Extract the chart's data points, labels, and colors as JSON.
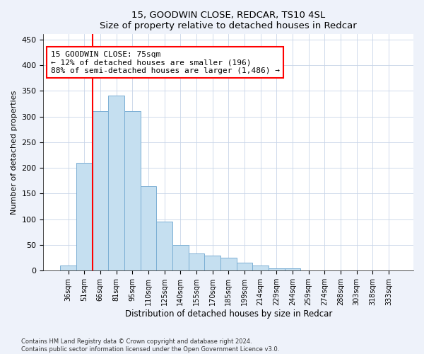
{
  "title1": "15, GOODWIN CLOSE, REDCAR, TS10 4SL",
  "title2": "Size of property relative to detached houses in Redcar",
  "xlabel": "Distribution of detached houses by size in Redcar",
  "ylabel": "Number of detached properties",
  "categories": [
    "36sqm",
    "51sqm",
    "66sqm",
    "81sqm",
    "95sqm",
    "110sqm",
    "125sqm",
    "140sqm",
    "155sqm",
    "170sqm",
    "185sqm",
    "199sqm",
    "214sqm",
    "229sqm",
    "244sqm",
    "259sqm",
    "274sqm",
    "288sqm",
    "303sqm",
    "318sqm",
    "333sqm"
  ],
  "values": [
    10,
    210,
    310,
    340,
    310,
    165,
    95,
    50,
    33,
    30,
    25,
    15,
    10,
    5,
    5,
    1,
    1,
    1,
    1,
    1,
    1
  ],
  "bar_color": "#c5dff0",
  "bar_edge_color": "#7bafd4",
  "vline_color": "red",
  "vline_pos": 1.5,
  "annotation_text": "15 GOODWIN CLOSE: 75sqm\n← 12% of detached houses are smaller (196)\n88% of semi-detached houses are larger (1,486) →",
  "annotation_box_color": "white",
  "annotation_box_edgecolor": "red",
  "ylim": [
    0,
    460
  ],
  "yticks": [
    0,
    50,
    100,
    150,
    200,
    250,
    300,
    350,
    400,
    450
  ],
  "footer1": "Contains HM Land Registry data © Crown copyright and database right 2024.",
  "footer2": "Contains public sector information licensed under the Open Government Licence v3.0.",
  "bg_color": "#eef2fa",
  "plot_bg_color": "#ffffff",
  "grid_color": "#c8d4e8"
}
